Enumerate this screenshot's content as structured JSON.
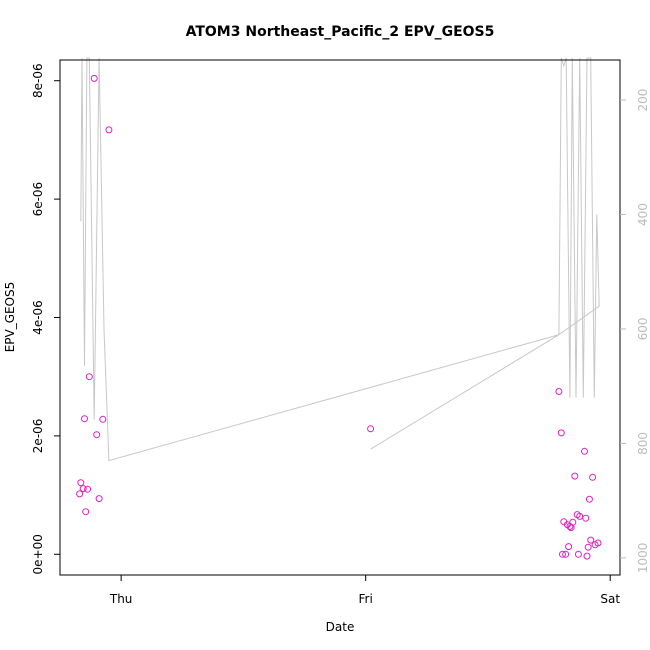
{
  "chart_data": {
    "type": "scatter",
    "title": "ATOM3 Northeast_Pacific_2 EPV_GEOS5",
    "xlabel": "Date",
    "ylabel": "EPV_GEOS5",
    "x_ticks": [
      {
        "x": 0,
        "label": "Thu"
      },
      {
        "x": 1,
        "label": "Fri"
      },
      {
        "x": 2,
        "label": "Sat"
      }
    ],
    "xlim": [
      -0.25,
      2.04
    ],
    "ylim": [
      -3.5e-07,
      8.35e-06
    ],
    "y_ticks": [
      {
        "v": 0,
        "label": "0e+00"
      },
      {
        "v": 2e-06,
        "label": "2e-06"
      },
      {
        "v": 4e-06,
        "label": "4e-06"
      },
      {
        "v": 6e-06,
        "label": "6e-06"
      },
      {
        "v": 8e-06,
        "label": "8e-06"
      }
    ],
    "right_axis": {
      "quantity": "pressure",
      "reversed": true,
      "ylim": [
        1030,
        130
      ],
      "ticks": [
        {
          "v": 200,
          "label": "200"
        },
        {
          "v": 400,
          "label": "400"
        },
        {
          "v": 600,
          "label": "600"
        },
        {
          "v": 800,
          "label": "800"
        },
        {
          "v": 1000,
          "label": "1000"
        }
      ]
    },
    "points_color": "#e020c0",
    "line_color": "#c8c8c8",
    "points": [
      {
        "x": -0.17,
        "y": 1.02e-06
      },
      {
        "x": -0.165,
        "y": 1.21e-06
      },
      {
        "x": -0.155,
        "y": 1.11e-06
      },
      {
        "x": -0.15,
        "y": 2.29e-06
      },
      {
        "x": -0.145,
        "y": 7.2e-07
      },
      {
        "x": -0.137,
        "y": 1.1e-06
      },
      {
        "x": -0.13,
        "y": 3e-06
      },
      {
        "x": -0.11,
        "y": 8.04e-06
      },
      {
        "x": -0.1,
        "y": 2.02e-06
      },
      {
        "x": -0.09,
        "y": 9.4e-07
      },
      {
        "x": -0.075,
        "y": 2.28e-06
      },
      {
        "x": -0.05,
        "y": 7.17e-06
      },
      {
        "x": 1.02,
        "y": 2.12e-06
      },
      {
        "x": 1.79,
        "y": 2.75e-06
      },
      {
        "x": 1.8,
        "y": 2.05e-06
      },
      {
        "x": 1.805,
        "y": 0
      },
      {
        "x": 1.81,
        "y": 5.5e-07
      },
      {
        "x": 1.818,
        "y": 0
      },
      {
        "x": 1.825,
        "y": 5e-07
      },
      {
        "x": 1.83,
        "y": 1.3e-07
      },
      {
        "x": 1.835,
        "y": 4.7e-07
      },
      {
        "x": 1.84,
        "y": 4.5e-07
      },
      {
        "x": 1.847,
        "y": 5.4e-07
      },
      {
        "x": 1.855,
        "y": 1.32e-06
      },
      {
        "x": 1.865,
        "y": 6.7e-07
      },
      {
        "x": 1.87,
        "y": 0
      },
      {
        "x": 1.875,
        "y": 6.4e-07
      },
      {
        "x": 1.895,
        "y": 1.74e-06
      },
      {
        "x": 1.9,
        "y": 6.1e-07
      },
      {
        "x": 1.905,
        "y": -3e-08
      },
      {
        "x": 1.91,
        "y": 1.2e-07
      },
      {
        "x": 1.915,
        "y": 9.3e-07
      },
      {
        "x": 1.92,
        "y": 2.4e-07
      },
      {
        "x": 1.928,
        "y": 1.3e-06
      },
      {
        "x": 1.938,
        "y": 1.6e-07
      },
      {
        "x": 1.95,
        "y": 1.9e-07
      }
    ],
    "pressure_line": [
      {
        "x": -0.165,
        "p": 412
      },
      {
        "x": -0.16,
        "p": 70
      },
      {
        "x": -0.15,
        "p": 665
      },
      {
        "x": -0.14,
        "p": 60
      },
      {
        "x": -0.13,
        "p": 100
      },
      {
        "x": -0.11,
        "p": 758
      },
      {
        "x": -0.09,
        "p": 80
      },
      {
        "x": -0.07,
        "p": 600
      },
      {
        "x": -0.05,
        "p": 830
      },
      {
        "x": 1.79,
        "p": 610
      },
      {
        "x": 1.8,
        "p": 100
      },
      {
        "x": 1.81,
        "p": 140
      },
      {
        "x": 1.82,
        "p": 100
      },
      {
        "x": 1.835,
        "p": 720
      },
      {
        "x": 1.845,
        "p": 60
      },
      {
        "x": 1.86,
        "p": 720
      },
      {
        "x": 1.875,
        "p": 60
      },
      {
        "x": 1.89,
        "p": 720
      },
      {
        "x": 1.905,
        "p": 60
      },
      {
        "x": 1.92,
        "p": 100
      },
      {
        "x": 1.935,
        "p": 720
      },
      {
        "x": 1.945,
        "p": 400
      },
      {
        "x": 1.955,
        "p": 560
      },
      {
        "x": 1.79,
        "p": 610
      },
      {
        "x": 1.02,
        "p": 810
      }
    ]
  }
}
